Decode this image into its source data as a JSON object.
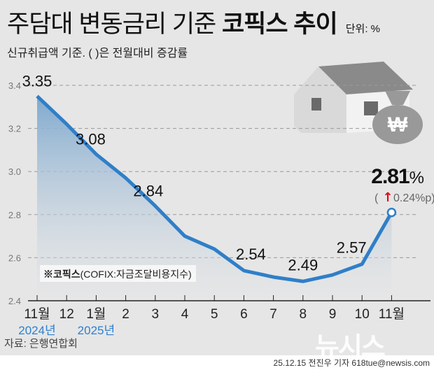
{
  "title_regular": "주담대 변동금리 기준",
  "title_bold": "코픽스 추이",
  "unit": "단위: %",
  "subtitle": "신규취급액 기준. ( )은 전월대비 증감률",
  "legend_note_bold": "※코픽스",
  "legend_note": "(COFIX:자금조달비용지수)",
  "source": "자료: 은행연합회",
  "credit": "25.12.15 전진우 기자 618tue@newsis.com",
  "logo": "뉴시스",
  "last_value_label": "2.81",
  "last_value_unit": "%",
  "change_label": "0.24%p",
  "colors": {
    "line": "#2f7fc8",
    "up_arrow": "#e60012",
    "year": "#2f80cf"
  },
  "chart_data": {
    "type": "area",
    "categories": [
      "11월",
      "12",
      "1월",
      "2",
      "3",
      "4",
      "5",
      "6",
      "7",
      "8",
      "9",
      "10",
      "11월"
    ],
    "year_labels": [
      {
        "index": 0,
        "label": "2024년"
      },
      {
        "index": 2,
        "label": "2025년"
      }
    ],
    "values": [
      3.35,
      3.22,
      3.08,
      2.97,
      2.84,
      2.7,
      2.64,
      2.54,
      2.51,
      2.49,
      2.52,
      2.57,
      2.81
    ],
    "data_labels": {
      "0": "3.35",
      "2": "3.08",
      "4": "2.84",
      "7": "2.54",
      "9": "2.49",
      "11": "2.57"
    },
    "yticks": [
      "2.4",
      "2.6",
      "2.8",
      "3.0",
      "3.2",
      "3.4"
    ],
    "ylim": [
      2.4,
      3.4
    ],
    "grid": true
  }
}
